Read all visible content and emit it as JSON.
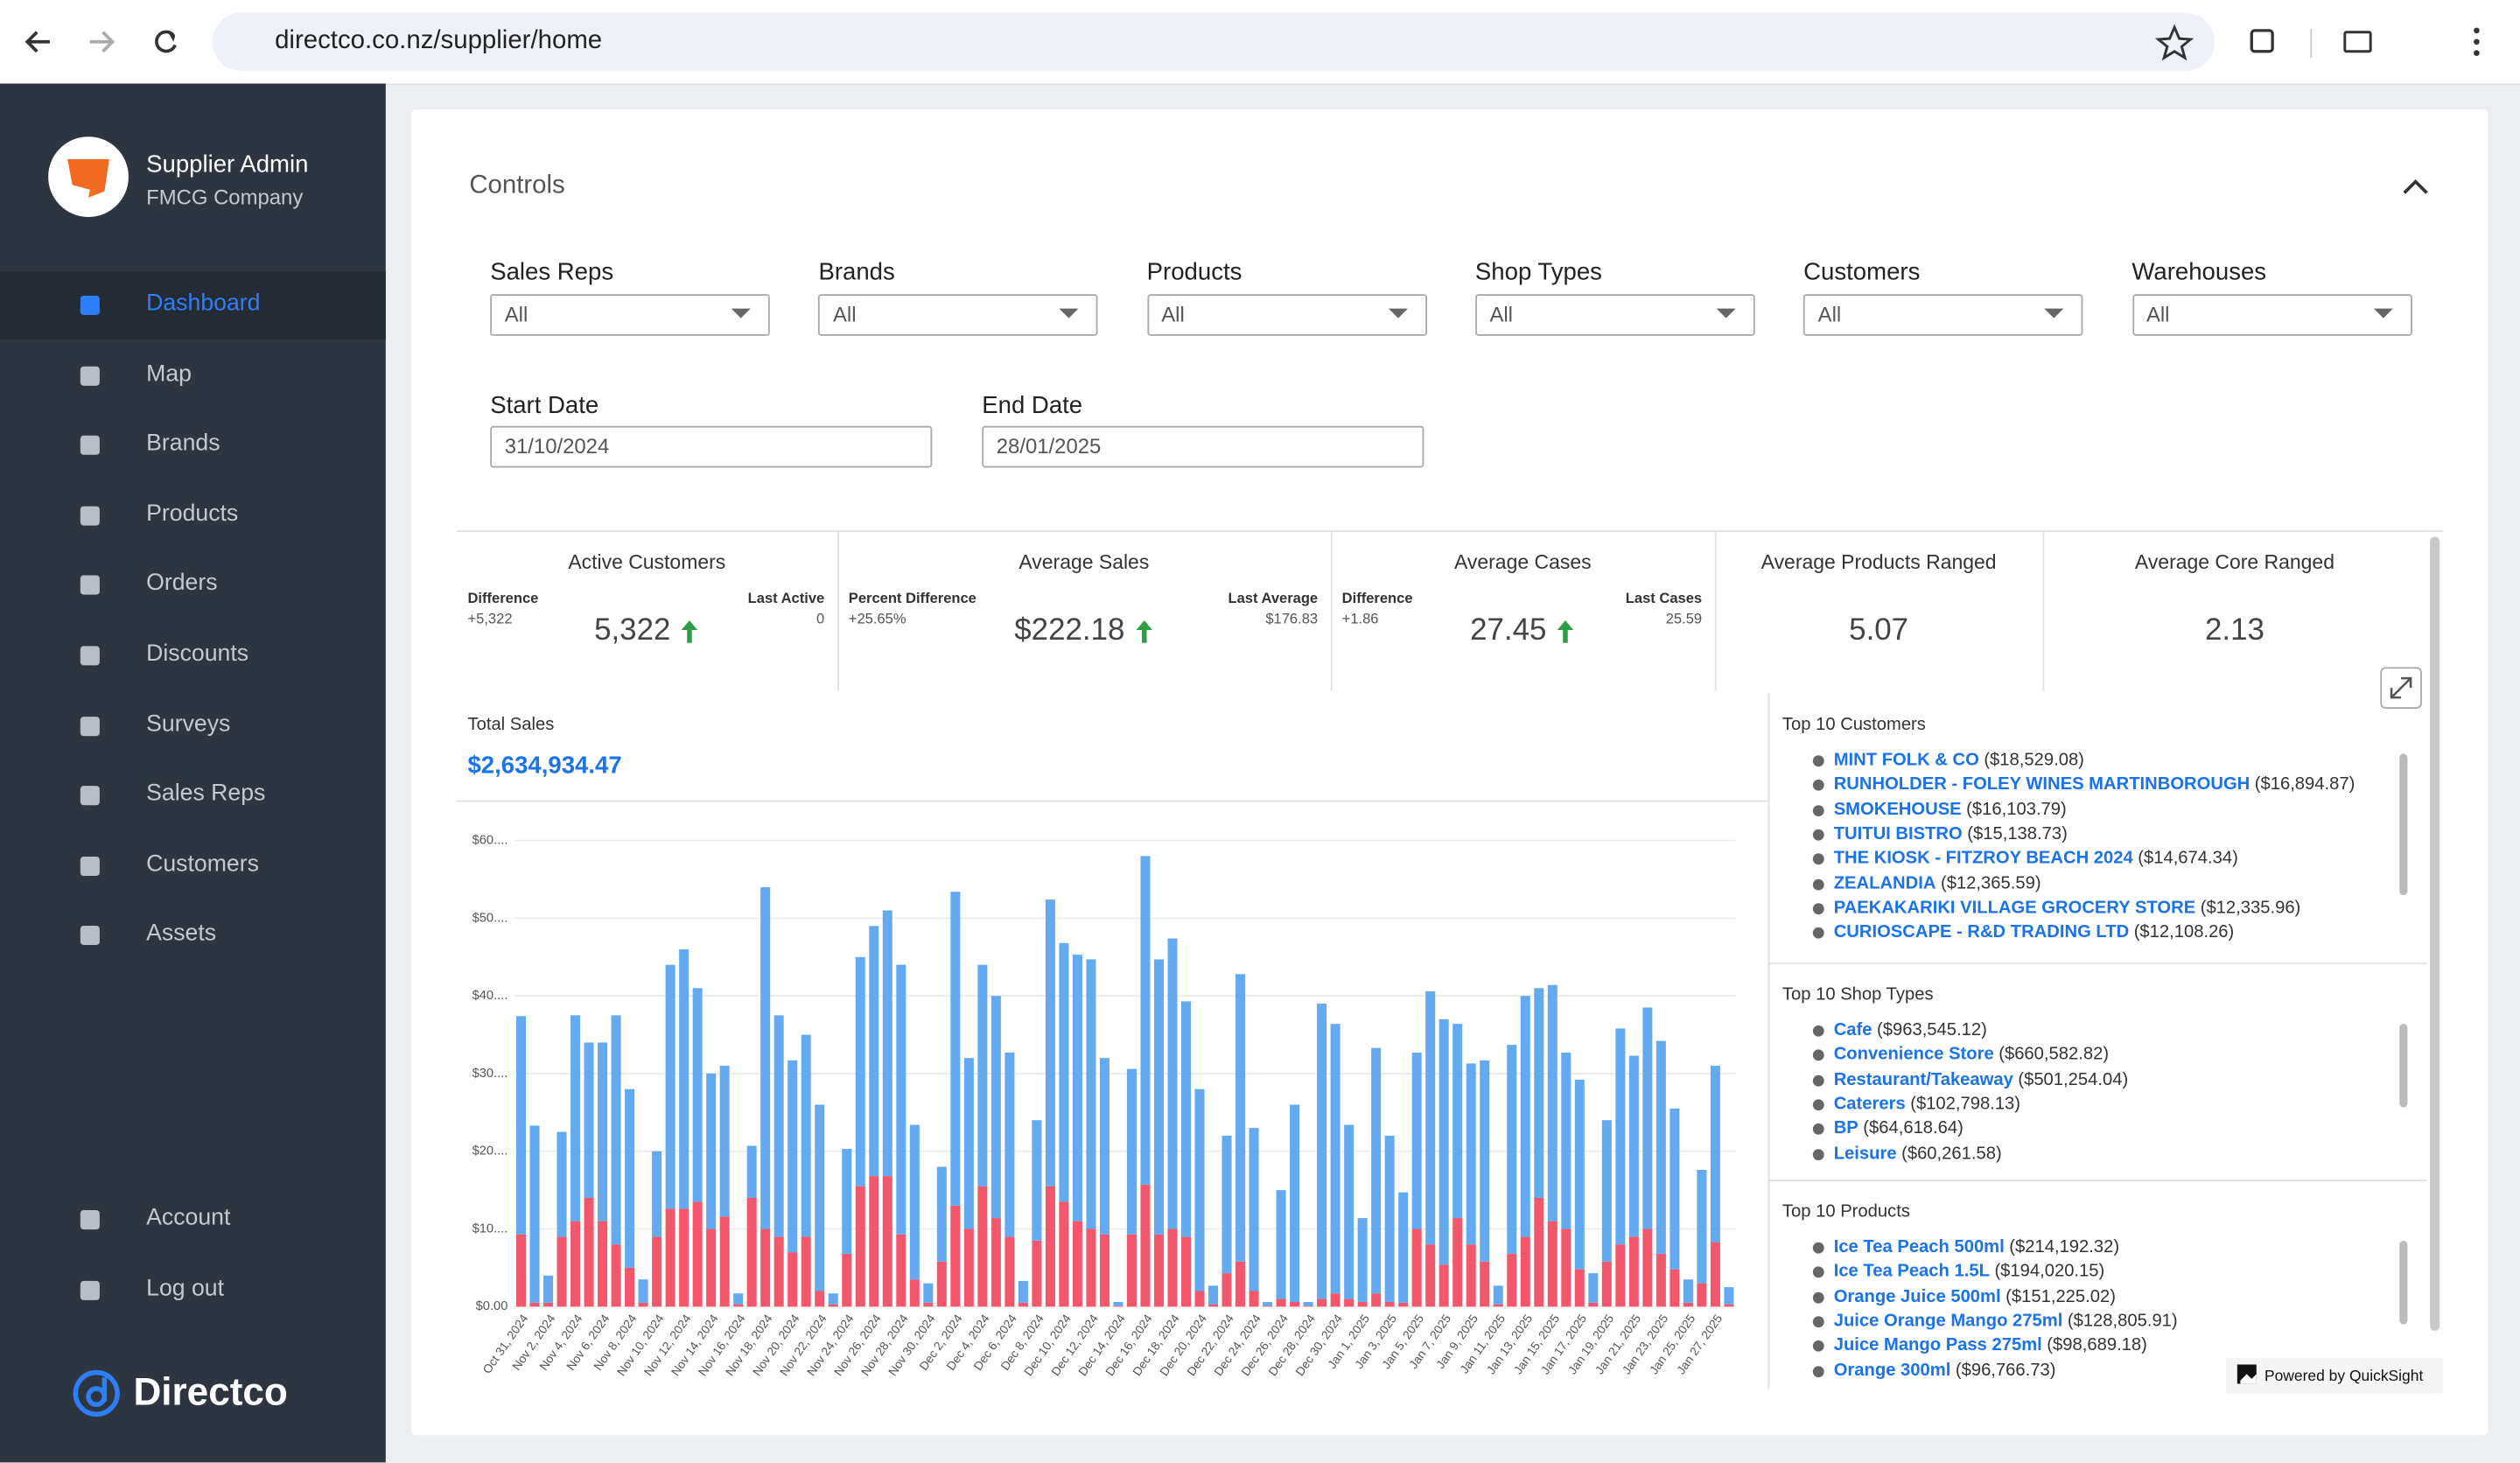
{
  "browser": {
    "url": "directco.co.nz/supplier/home"
  },
  "sidebar": {
    "user": "Supplier Admin",
    "company": "FMCG Company",
    "nav": [
      {
        "label": "Dashboard",
        "active": true
      },
      {
        "label": "Map"
      },
      {
        "label": "Brands"
      },
      {
        "label": "Products"
      },
      {
        "label": "Orders"
      },
      {
        "label": "Discounts"
      },
      {
        "label": "Surveys"
      },
      {
        "label": "Sales Reps"
      },
      {
        "label": "Customers"
      },
      {
        "label": "Assets"
      }
    ],
    "bottom": [
      "Account",
      "Log out"
    ],
    "logo": "Directco"
  },
  "controls": {
    "title": "Controls",
    "filters": [
      {
        "label": "Sales Reps",
        "value": "All"
      },
      {
        "label": "Brands",
        "value": "All"
      },
      {
        "label": "Products",
        "value": "All"
      },
      {
        "label": "Shop Types",
        "value": "All"
      },
      {
        "label": "Customers",
        "value": "All"
      },
      {
        "label": "Warehouses",
        "value": "All"
      }
    ],
    "dates": [
      {
        "label": "Start Date",
        "value": "31/10/2024"
      },
      {
        "label": "End Date",
        "value": "28/01/2025"
      }
    ]
  },
  "kpis": [
    {
      "title": "Active Customers",
      "left_label": "Difference",
      "left_value": "+5,322",
      "right_label": "Last Active",
      "right_value": "0",
      "value": "5,322",
      "trend": "up"
    },
    {
      "title": "Average Sales",
      "left_label": "Percent Difference",
      "left_value": "+25.65%",
      "right_label": "Last Average",
      "right_value": "$176.83",
      "value": "$222.18",
      "trend": "up"
    },
    {
      "title": "Average Cases",
      "left_label": "Difference",
      "left_value": "+1.86",
      "right_label": "Last Cases",
      "right_value": "25.59",
      "value": "27.45",
      "trend": "up"
    },
    {
      "title": "Average Products Ranged",
      "value": "5.07"
    },
    {
      "title": "Average Core Ranged",
      "value": "2.13"
    }
  ],
  "total_sales": {
    "label": "Total Sales",
    "value": "$2,634,934.47"
  },
  "chart_data": {
    "type": "stacked_bar",
    "categories": [
      "Oct 31, 2024",
      null,
      "Nov 2, 2024",
      null,
      "Nov 4, 2024",
      null,
      "Nov 6, 2024",
      null,
      "Nov 8, 2024",
      null,
      "Nov 10, 2024",
      null,
      "Nov 12, 2024",
      null,
      "Nov 14, 2024",
      null,
      "Nov 16, 2024",
      null,
      "Nov 18, 2024",
      null,
      "Nov 20, 2024",
      null,
      "Nov 22, 2024",
      null,
      "Nov 24, 2024",
      null,
      "Nov 26, 2024",
      null,
      "Nov 28, 2024",
      null,
      "Nov 30, 2024",
      null,
      "Dec 2, 2024",
      null,
      "Dec 4, 2024",
      null,
      "Dec 6, 2024",
      null,
      "Dec 8, 2024",
      null,
      "Dec 10, 2024",
      null,
      "Dec 12, 2024",
      null,
      "Dec 14, 2024",
      null,
      "Dec 16, 2024",
      null,
      "Dec 18, 2024",
      null,
      "Dec 20, 2024",
      null,
      "Dec 22, 2024",
      null,
      "Dec 24, 2024",
      null,
      "Dec 26, 2024",
      null,
      "Dec 28, 2024",
      null,
      "Dec 30, 2024",
      null,
      "Jan 1, 2025",
      null,
      "Jan 3, 2025",
      null,
      "Jan 5, 2025",
      null,
      "Jan 7, 2025",
      null,
      "Jan 9, 2025",
      null,
      "Jan 11, 2025",
      null,
      "Jan 13, 2025",
      null,
      "Jan 15, 2025",
      null,
      "Jan 17, 2025",
      null,
      "Jan 19, 2025",
      null,
      "Jan 21, 2025",
      null,
      "Jan 23, 2025",
      null,
      "Jan 25, 2025",
      null,
      "Jan 27, 2025",
      null
    ],
    "series": [
      {
        "color": "#f2576b",
        "values": [
          9300,
          500,
          500,
          9000,
          11000,
          14000,
          11000,
          8000,
          5000,
          500,
          9000,
          12600,
          12600,
          13500,
          10000,
          11600,
          300,
          14000,
          10000,
          9000,
          7000,
          9000,
          2000,
          300,
          6800,
          15500,
          16800,
          16800,
          9300,
          3500,
          500,
          5800,
          13000,
          10000,
          15500,
          11400,
          9000,
          500,
          8500,
          15500,
          13500,
          11000,
          10000,
          9300,
          100,
          9300,
          15700,
          9300,
          10000,
          9000,
          2000,
          300,
          4300,
          5800,
          2000,
          100,
          1000,
          600,
          100,
          1000,
          1700,
          1000,
          600,
          1700,
          600,
          500,
          10000,
          8000,
          5400,
          11400,
          8000,
          5800,
          300,
          6800,
          9000,
          14000,
          11000,
          10000,
          4800,
          500,
          5800,
          8000,
          9000,
          10000,
          6800,
          4800,
          500,
          3000,
          8300,
          300
        ]
      },
      {
        "color": "#64aaf0",
        "values": [
          28100,
          22800,
          3500,
          13500,
          26500,
          20000,
          23000,
          29500,
          23000,
          3000,
          11000,
          31400,
          33400,
          27500,
          20000,
          19400,
          1400,
          6700,
          44000,
          28500,
          24700,
          26000,
          24000,
          1400,
          13500,
          29500,
          32200,
          34200,
          34700,
          19900,
          2500,
          12200,
          40400,
          22000,
          28500,
          28600,
          23700,
          2800,
          15500,
          36900,
          33300,
          34300,
          34700,
          22700,
          500,
          21300,
          42300,
          35400,
          37400,
          30300,
          26000,
          2400,
          17700,
          37000,
          21000,
          500,
          14000,
          25400,
          500,
          38000,
          34700,
          22400,
          10800,
          31600,
          21400,
          14200,
          22700,
          32600,
          31600,
          25000,
          23300,
          25900,
          2400,
          26900,
          31000,
          27000,
          30400,
          22700,
          24400,
          3800,
          18200,
          27800,
          23300,
          28500,
          27400,
          20700,
          3000,
          14600,
          22700,
          2200
        ]
      }
    ],
    "ylim": [
      0,
      60000
    ],
    "yticks": [
      {
        "value": 0,
        "label": "$0.00"
      },
      {
        "value": 10000,
        "label": "$10...."
      },
      {
        "value": 20000,
        "label": "$20...."
      },
      {
        "value": 30000,
        "label": "$30...."
      },
      {
        "value": 40000,
        "label": "$40...."
      },
      {
        "value": 50000,
        "label": "$50...."
      },
      {
        "value": 60000,
        "label": "$60...."
      }
    ],
    "grid": true
  },
  "top_lists": [
    {
      "title": "Top 10 Customers",
      "items": [
        {
          "name": "MINT FOLK & CO",
          "value": "($18,529.08)"
        },
        {
          "name": "RUNHOLDER - FOLEY WINES MARTINBOROUGH",
          "value": "($16,894.87)"
        },
        {
          "name": "SMOKEHOUSE",
          "value": "($16,103.79)"
        },
        {
          "name": "TUITUI BISTRO",
          "value": "($15,138.73)"
        },
        {
          "name": "THE KIOSK - FITZROY BEACH 2024",
          "value": "($14,674.34)"
        },
        {
          "name": "ZEALANDIA",
          "value": "($12,365.59)"
        },
        {
          "name": "PAEKAKARIKI VILLAGE GROCERY STORE",
          "value": "($12,335.96)"
        },
        {
          "name": "CURIOSCAPE - R&D TRADING LTD",
          "value": "($12,108.26)"
        }
      ]
    },
    {
      "title": "Top 10 Shop Types",
      "items": [
        {
          "name": "Cafe",
          "value": "($963,545.12)"
        },
        {
          "name": "Convenience Store",
          "value": "($660,582.82)"
        },
        {
          "name": "Restaurant/Takeaway",
          "value": "($501,254.04)"
        },
        {
          "name": "Caterers",
          "value": "($102,798.13)"
        },
        {
          "name": "BP",
          "value": "($64,618.64)"
        },
        {
          "name": "Leisure",
          "value": "($60,261.58)"
        }
      ]
    },
    {
      "title": "Top 10 Products",
      "items": [
        {
          "name": "Ice Tea Peach 500ml",
          "value": "($214,192.32)"
        },
        {
          "name": "Ice Tea Peach 1.5L",
          "value": "($194,020.15)"
        },
        {
          "name": "Orange Juice 500ml",
          "value": "($151,225.02)"
        },
        {
          "name": "Juice Orange Mango 275ml",
          "value": "($128,805.91)"
        },
        {
          "name": "Juice Mango Pass 275ml",
          "value": "($98,689.18)"
        },
        {
          "name": "Orange 300ml",
          "value": "($96,766.73)"
        }
      ]
    }
  ],
  "footer": "Powered by QuickSight"
}
